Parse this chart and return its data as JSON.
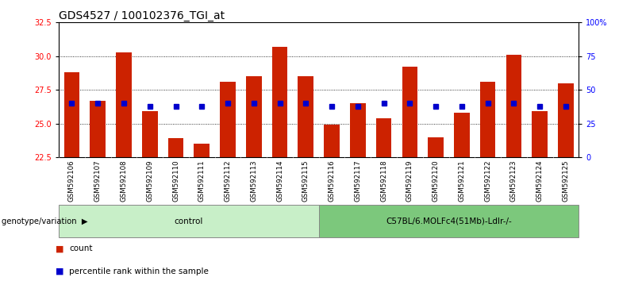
{
  "title": "GDS4527 / 100102376_TGI_at",
  "samples": [
    "GSM592106",
    "GSM592107",
    "GSM592108",
    "GSM592109",
    "GSM592110",
    "GSM592111",
    "GSM592112",
    "GSM592113",
    "GSM592114",
    "GSM592115",
    "GSM592116",
    "GSM592117",
    "GSM592118",
    "GSM592119",
    "GSM592120",
    "GSM592121",
    "GSM592122",
    "GSM592123",
    "GSM592124",
    "GSM592125"
  ],
  "bar_values": [
    28.8,
    26.7,
    30.3,
    25.9,
    23.9,
    23.5,
    28.1,
    28.5,
    30.7,
    28.5,
    24.9,
    26.5,
    25.4,
    29.2,
    24.0,
    25.8,
    28.1,
    30.1,
    25.9,
    28.0
  ],
  "percentile_values": [
    26.5,
    26.5,
    26.5,
    26.3,
    26.3,
    26.3,
    26.5,
    26.5,
    26.5,
    26.5,
    26.3,
    26.3,
    26.5,
    26.5,
    26.3,
    26.3,
    26.5,
    26.5,
    26.3,
    26.3
  ],
  "groups": [
    {
      "label": "control",
      "start": 0,
      "end": 10,
      "color": "#c8efc8"
    },
    {
      "label": "C57BL/6.MOLFc4(51Mb)-Ldlr-/-",
      "start": 10,
      "end": 20,
      "color": "#7cc87c"
    }
  ],
  "ylim_left": [
    22.5,
    32.5
  ],
  "ylim_right": [
    0,
    100
  ],
  "yticks_left": [
    22.5,
    25.0,
    27.5,
    30.0,
    32.5
  ],
  "yticks_right": [
    0,
    25,
    50,
    75,
    100
  ],
  "bar_color": "#cc2200",
  "dot_color": "#0000cc",
  "background_color": "#ffffff",
  "grid_color": "#000000",
  "title_fontsize": 10,
  "axis_fontsize": 8,
  "tick_label_fontsize": 7,
  "legend_label_count": "count",
  "legend_label_percentile": "percentile rank within the sample",
  "xlabel_area_bg": "#c8c8c8"
}
